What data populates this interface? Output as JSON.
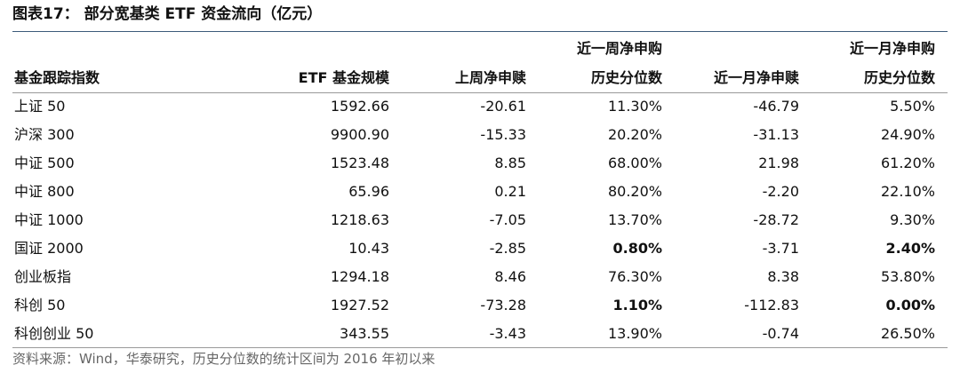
{
  "title": "图表17： 部分宽基类 ETF 资金流向（亿元）",
  "table": {
    "header": [
      [
        "基金跟踪指数"
      ],
      [
        "ETF 基金规模"
      ],
      [
        "上周净申赎"
      ],
      [
        "近一周净申购",
        "历史分位数"
      ],
      [
        "近一月净申赎"
      ],
      [
        "近一月净申购",
        "历史分位数"
      ]
    ],
    "rows": [
      [
        {
          "text": "上证 50"
        },
        {
          "text": "1592.66"
        },
        {
          "text": "-20.61"
        },
        {
          "text": "11.30%"
        },
        {
          "text": "-46.79"
        },
        {
          "text": "5.50%"
        }
      ],
      [
        {
          "text": "沪深 300"
        },
        {
          "text": "9900.90"
        },
        {
          "text": "-15.33"
        },
        {
          "text": "20.20%"
        },
        {
          "text": "-31.13"
        },
        {
          "text": "24.90%"
        }
      ],
      [
        {
          "text": "中证 500"
        },
        {
          "text": "1523.48"
        },
        {
          "text": "8.85"
        },
        {
          "text": "68.00%"
        },
        {
          "text": "21.98"
        },
        {
          "text": "61.20%"
        }
      ],
      [
        {
          "text": "中证 800"
        },
        {
          "text": "65.96"
        },
        {
          "text": "0.21"
        },
        {
          "text": "80.20%"
        },
        {
          "text": "-2.20"
        },
        {
          "text": "22.10%"
        }
      ],
      [
        {
          "text": "中证 1000"
        },
        {
          "text": "1218.63"
        },
        {
          "text": "-7.05"
        },
        {
          "text": "13.70%"
        },
        {
          "text": "-28.72"
        },
        {
          "text": "9.30%"
        }
      ],
      [
        {
          "text": "国证 2000"
        },
        {
          "text": "10.43"
        },
        {
          "text": "-2.85"
        },
        {
          "text": "0.80%",
          "bold": true
        },
        {
          "text": "-3.71"
        },
        {
          "text": "2.40%",
          "bold": true
        }
      ],
      [
        {
          "text": "创业板指"
        },
        {
          "text": "1294.18"
        },
        {
          "text": "8.46"
        },
        {
          "text": "76.30%"
        },
        {
          "text": "8.38"
        },
        {
          "text": "53.80%"
        }
      ],
      [
        {
          "text": "科创 50"
        },
        {
          "text": "1927.52"
        },
        {
          "text": "-73.28"
        },
        {
          "text": "1.10%",
          "bold": true
        },
        {
          "text": "-112.83"
        },
        {
          "text": "0.00%",
          "bold": true
        }
      ],
      [
        {
          "text": "科创创业 50"
        },
        {
          "text": "343.55"
        },
        {
          "text": "-3.43"
        },
        {
          "text": "13.90%"
        },
        {
          "text": "-0.74"
        },
        {
          "text": "26.50%"
        }
      ]
    ]
  },
  "source": "资料来源：Wind，华泰研究，历史分位数的统计区间为 2016 年初以来"
}
